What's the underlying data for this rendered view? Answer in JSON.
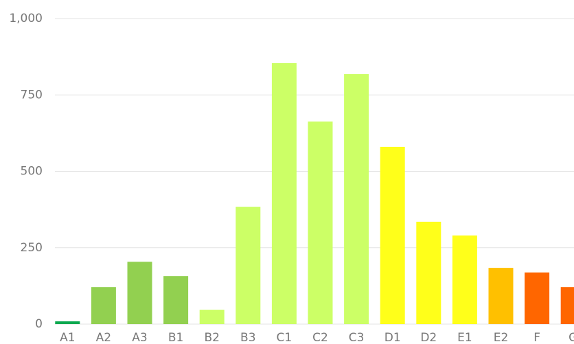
{
  "chart_data": {
    "type": "bar",
    "categories": [
      "A1",
      "A2",
      "A3",
      "B1",
      "B2",
      "B3",
      "C1",
      "C2",
      "C3",
      "D1",
      "D2",
      "E1",
      "E2",
      "F",
      "G"
    ],
    "values": [
      9,
      121,
      204,
      157,
      47,
      384,
      854,
      663,
      818,
      580,
      335,
      290,
      184,
      169,
      121
    ],
    "colors": [
      "#0aa84f",
      "#92d050",
      "#92d050",
      "#92d050",
      "#ccff66",
      "#ccff66",
      "#ccff66",
      "#ccff66",
      "#ccff66",
      "#ffff1a",
      "#ffff1a",
      "#ffff1a",
      "#ffc000",
      "#ff6600",
      "#ff6600"
    ],
    "ylim": [
      0,
      1000
    ],
    "yticks": [
      0,
      250,
      500,
      750,
      {
        "value": 1000,
        "label": "1,000"
      }
    ],
    "grid": true
  }
}
